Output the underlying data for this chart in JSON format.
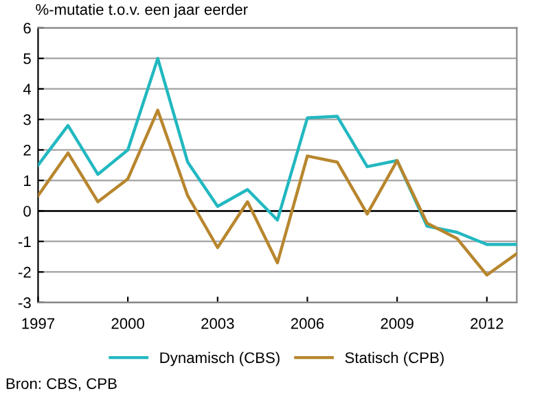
{
  "chart_data": {
    "type": "line",
    "ylabel": "%-mutatie t.o.v. een jaar eerder",
    "x": [
      1997,
      1998,
      1999,
      2000,
      2001,
      2002,
      2003,
      2004,
      2005,
      2006,
      2007,
      2008,
      2009,
      2010,
      2011,
      2012,
      2013
    ],
    "series": [
      {
        "name": "Dynamisch (CBS)",
        "color": "#22b8c0",
        "values": [
          1.5,
          2.8,
          1.2,
          2.0,
          5.0,
          1.6,
          0.15,
          0.7,
          -0.3,
          3.05,
          3.1,
          1.45,
          1.65,
          -0.5,
          -0.7,
          -1.1,
          -1.1
        ]
      },
      {
        "name": "Statisch (CPB)",
        "color": "#b8862e",
        "values": [
          0.5,
          1.9,
          0.3,
          1.05,
          3.3,
          0.5,
          -1.2,
          0.3,
          -1.7,
          1.8,
          1.6,
          -0.1,
          1.65,
          -0.4,
          -0.9,
          -2.1,
          -1.4
        ]
      }
    ],
    "xlim": [
      1997,
      2013
    ],
    "xticks": [
      1997,
      2000,
      2003,
      2006,
      2009,
      2012
    ],
    "ylim": [
      -3,
      6
    ],
    "yticks": [
      -3,
      -2,
      -1,
      0,
      1,
      2,
      3,
      4,
      5,
      6
    ],
    "ref_lines": [
      {
        "axis": "y",
        "value": 0,
        "color": "#000000"
      }
    ],
    "grid": "y",
    "legend": "bottom",
    "marker": "none",
    "line_style": "solid",
    "annotations": [
      "Bron: CBS, CPB"
    ]
  }
}
